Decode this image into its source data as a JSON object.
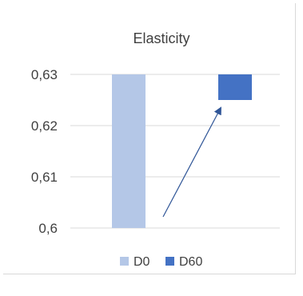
{
  "chart_data": {
    "type": "bar",
    "title": "Elasticity",
    "xlabel": "",
    "ylabel": "",
    "ylim": [
      0.6,
      0.63
    ],
    "y_ticks": [
      "0,6",
      "0,61",
      "0,62",
      "0,63"
    ],
    "y_tick_values": [
      0.6,
      0.61,
      0.62,
      0.63
    ],
    "grid": true,
    "legend_position": "bottom",
    "series": [
      {
        "name": "D0",
        "color": "#b4c7e7",
        "start": 0.6,
        "end": 0.63
      },
      {
        "name": "D60",
        "color": "#4472c4",
        "start": 0.625,
        "end": 0.63
      }
    ],
    "annotation": {
      "type": "arrow",
      "color": "#2f5597"
    }
  }
}
